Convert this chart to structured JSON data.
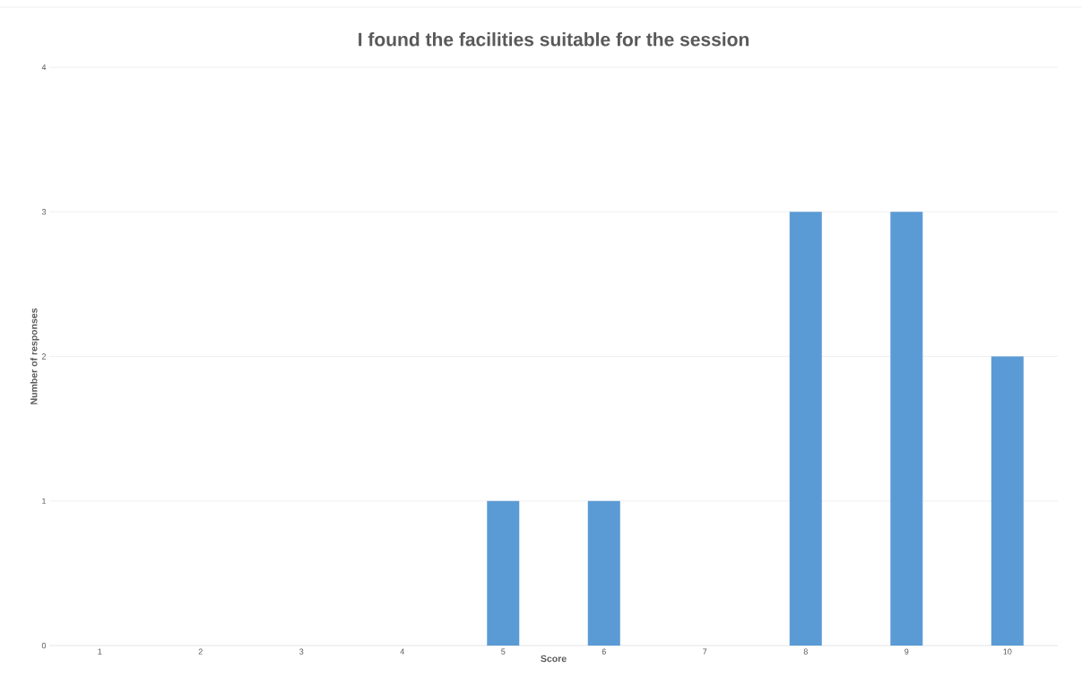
{
  "chart_data": {
    "type": "bar",
    "title": "I found the facilities suitable for the session",
    "xlabel": "Score",
    "ylabel": "Number of responses",
    "categories": [
      "1",
      "2",
      "3",
      "4",
      "5",
      "6",
      "7",
      "8",
      "9",
      "10"
    ],
    "values": [
      0,
      0,
      0,
      0,
      1,
      1,
      0,
      3,
      3,
      2
    ],
    "color": "#5b9bd5",
    "ylim": [
      0,
      4
    ],
    "yticks": [
      0,
      1,
      2,
      3,
      4
    ],
    "grid": "y"
  }
}
